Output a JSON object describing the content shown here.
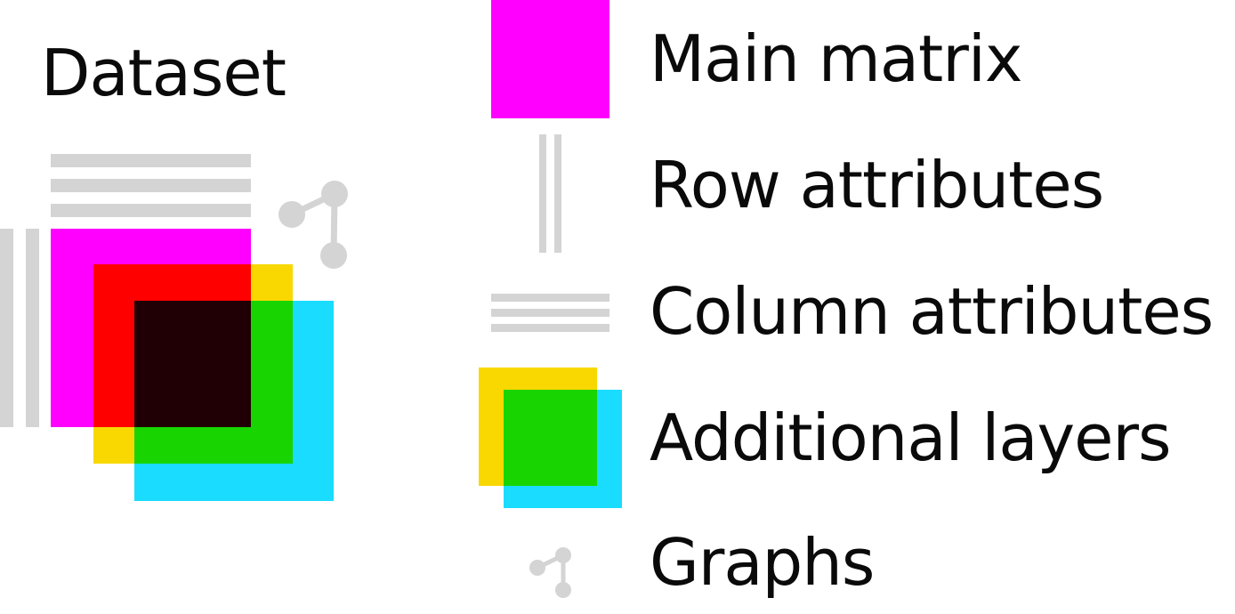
{
  "title": "Dataset",
  "legend": [
    {
      "label": "Main matrix",
      "icon": "main-matrix-icon"
    },
    {
      "label": "Row attributes",
      "icon": "row-attributes-icon"
    },
    {
      "label": "Column attributes",
      "icon": "column-attributes-icon"
    },
    {
      "label": "Additional layers",
      "icon": "additional-layers-icon"
    },
    {
      "label": "Graphs",
      "icon": "graph-icon"
    }
  ],
  "colors": {
    "main_matrix": "#ff00ff",
    "attributes": "#d4d4d4",
    "layer_red": "#ff0000",
    "layer_yellow": "#f8d800",
    "layer_green": "#18d400",
    "layer_cyan": "#19dcff",
    "overlap_dark": "#200004"
  }
}
